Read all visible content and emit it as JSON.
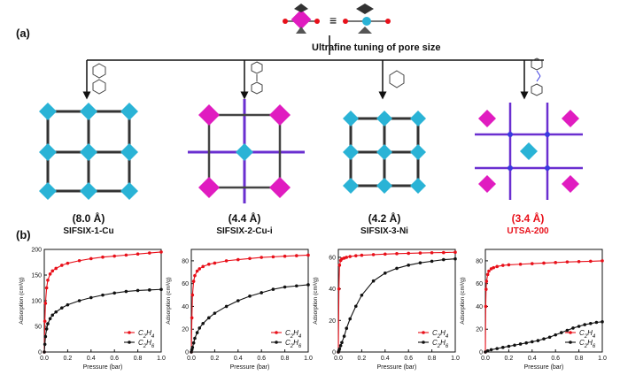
{
  "panel_a_label": "(a)",
  "panel_b_label": "(b)",
  "top": {
    "equiv": "≡",
    "caption": "Ultrafine tuning of pore size"
  },
  "materials": [
    {
      "pore": "(8.0 Å)",
      "name": "SIFSIX-1-Cu",
      "highlight": false
    },
    {
      "pore": "(4.4 Å)",
      "name": "SIFSIX-2-Cu-i",
      "highlight": false
    },
    {
      "pore": "(4.2 Å)",
      "name": "SIFSIX-3-Ni",
      "highlight": false
    },
    {
      "pore": "(3.4 Å)",
      "name": "UTSA-200",
      "highlight": true
    }
  ],
  "colors": {
    "c2h4": "#e8101a",
    "c2h6": "#111111",
    "cyan": "#2ab3d6",
    "magenta": "#e01cc0",
    "purple": "#6a2fd0"
  },
  "chart_data": [
    {
      "type": "line",
      "xlabel": "Pressure (bar)",
      "ylabel": "Adsorption (cm³/g)",
      "xlim": [
        0,
        1.0
      ],
      "ylim": [
        0,
        200
      ],
      "xticks": [
        "0.0",
        "0.2",
        "0.4",
        "0.6",
        "0.8",
        "1.0"
      ],
      "yticks": [
        "0",
        "50",
        "100",
        "150",
        "200"
      ],
      "legend": "bottom-right",
      "series": [
        {
          "name": "C2H4",
          "x": [
            0,
            0.005,
            0.01,
            0.02,
            0.03,
            0.05,
            0.07,
            0.1,
            0.15,
            0.2,
            0.3,
            0.4,
            0.5,
            0.6,
            0.7,
            0.8,
            0.9,
            1.0
          ],
          "y": [
            0,
            60,
            95,
            125,
            140,
            152,
            158,
            163,
            169,
            173,
            178,
            182,
            185,
            187,
            189,
            191,
            193,
            195
          ]
        },
        {
          "name": "C2H6",
          "x": [
            0,
            0.005,
            0.01,
            0.02,
            0.03,
            0.05,
            0.07,
            0.1,
            0.15,
            0.2,
            0.3,
            0.4,
            0.5,
            0.6,
            0.7,
            0.8,
            0.9,
            1.0
          ],
          "y": [
            0,
            15,
            30,
            45,
            55,
            65,
            72,
            78,
            86,
            92,
            100,
            106,
            111,
            115,
            118,
            120,
            121,
            122
          ]
        }
      ]
    },
    {
      "type": "line",
      "xlabel": "Pressure (bar)",
      "ylabel": "Adsorption (cm³/g)",
      "xlim": [
        0,
        1.0
      ],
      "ylim": [
        0,
        90
      ],
      "xticks": [
        "0.0",
        "0.2",
        "0.4",
        "0.6",
        "0.8",
        "1.0"
      ],
      "yticks": [
        "0",
        "20",
        "40",
        "60",
        "80"
      ],
      "legend": "bottom-right",
      "series": [
        {
          "name": "C2H4",
          "x": [
            0,
            0.005,
            0.01,
            0.02,
            0.03,
            0.05,
            0.07,
            0.1,
            0.15,
            0.2,
            0.3,
            0.4,
            0.5,
            0.6,
            0.7,
            0.8,
            0.9,
            1.0
          ],
          "y": [
            0,
            30,
            50,
            62,
            67,
            71,
            73,
            75,
            77,
            78,
            80,
            81,
            82,
            83,
            83.5,
            84,
            84.5,
            85
          ]
        },
        {
          "name": "C2H6",
          "x": [
            0,
            0.005,
            0.01,
            0.02,
            0.03,
            0.05,
            0.07,
            0.1,
            0.15,
            0.2,
            0.3,
            0.4,
            0.5,
            0.6,
            0.7,
            0.8,
            0.9,
            1.0
          ],
          "y": [
            0,
            2,
            4,
            8,
            12,
            17,
            21,
            25,
            30,
            34,
            40,
            45,
            49,
            52,
            55,
            57,
            58,
            59
          ]
        }
      ]
    },
    {
      "type": "line",
      "xlabel": "Pressure (bar)",
      "ylabel": "Adsorption (cm³/g)",
      "xlim": [
        0,
        1.0
      ],
      "ylim": [
        0,
        65
      ],
      "xticks": [
        "0.0",
        "0.2",
        "0.4",
        "0.6",
        "0.8",
        "1.0"
      ],
      "yticks": [
        "0",
        "20",
        "40",
        "60"
      ],
      "legend": "bottom-right",
      "series": [
        {
          "name": "C2H4",
          "x": [
            0,
            0.005,
            0.01,
            0.02,
            0.03,
            0.05,
            0.07,
            0.1,
            0.15,
            0.2,
            0.3,
            0.4,
            0.5,
            0.6,
            0.7,
            0.8,
            0.9,
            1.0
          ],
          "y": [
            0,
            40,
            55,
            58,
            59,
            59.5,
            60,
            60.5,
            61,
            61.3,
            61.7,
            62,
            62.3,
            62.5,
            62.7,
            62.9,
            63,
            63.2
          ]
        },
        {
          "name": "C2H6",
          "x": [
            0,
            0.005,
            0.01,
            0.02,
            0.03,
            0.05,
            0.07,
            0.1,
            0.15,
            0.2,
            0.3,
            0.4,
            0.5,
            0.6,
            0.7,
            0.8,
            0.9,
            1.0
          ],
          "y": [
            0,
            1,
            2,
            4,
            6,
            10,
            15,
            21,
            29,
            36,
            45,
            50,
            53,
            55,
            56.5,
            57.5,
            58.5,
            59
          ]
        }
      ]
    },
    {
      "type": "line",
      "xlabel": "Pressure (bar)",
      "ylabel": "Adsorption (cm³/g)",
      "xlim": [
        0,
        1.0
      ],
      "ylim": [
        0,
        90
      ],
      "xticks": [
        "0.0",
        "0.2",
        "0.4",
        "0.6",
        "0.8",
        "1.0"
      ],
      "yticks": [
        "0",
        "20",
        "40",
        "60",
        "80"
      ],
      "legend": "bottom-right",
      "series": [
        {
          "name": "C2H4",
          "x": [
            0,
            0.003,
            0.006,
            0.01,
            0.02,
            0.03,
            0.05,
            0.07,
            0.1,
            0.15,
            0.2,
            0.3,
            0.4,
            0.5,
            0.6,
            0.7,
            0.8,
            0.9,
            1.0
          ],
          "y": [
            0,
            40,
            55,
            62,
            68,
            71,
            73,
            74,
            75,
            76,
            76.5,
            77,
            77.5,
            78,
            78.5,
            79,
            79.3,
            79.6,
            80
          ]
        },
        {
          "name": "C2H6",
          "x": [
            0,
            0.02,
            0.05,
            0.1,
            0.15,
            0.2,
            0.25,
            0.3,
            0.35,
            0.4,
            0.45,
            0.5,
            0.55,
            0.6,
            0.65,
            0.7,
            0.75,
            0.8,
            0.85,
            0.9,
            0.95,
            1.0
          ],
          "y": [
            0,
            1,
            2,
            3,
            4,
            5,
            6,
            7,
            8,
            9,
            10,
            11.5,
            13,
            15,
            17,
            19,
            21,
            22.5,
            24,
            25,
            26,
            26.5
          ]
        }
      ]
    }
  ]
}
